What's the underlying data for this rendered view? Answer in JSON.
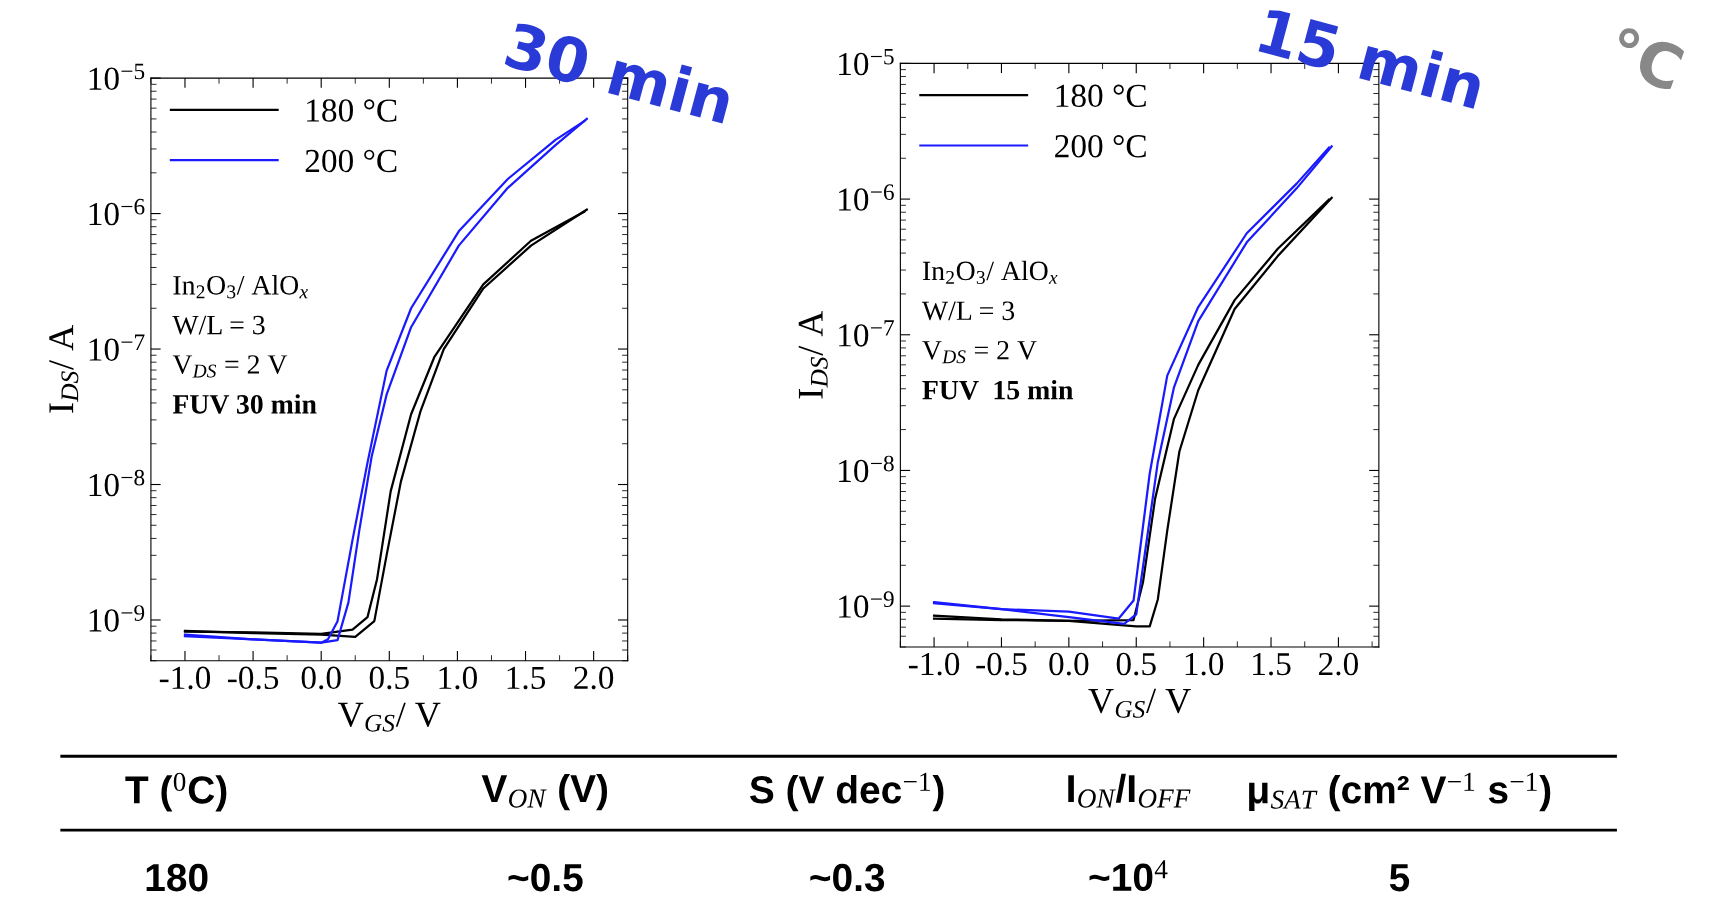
{
  "chart_data": [
    {
      "type": "line",
      "title": "30 min",
      "xlabel": "V$_{GS}$/ V",
      "ylabel": "I$_{DS}$/ A",
      "log": "y",
      "legend": "top left",
      "grid": false,
      "xlim": [
        -1.25,
        2.25
      ],
      "xticks": [
        {
          "value": -1.0,
          "label": "-1.0"
        },
        {
          "value": -0.5,
          "label": "-0.5"
        },
        {
          "value": 0.0,
          "label": "0.0"
        },
        {
          "value": 0.5,
          "label": "0.5"
        },
        {
          "value": 1.0,
          "label": "1.0"
        },
        {
          "value": 1.5,
          "label": "1.5"
        },
        {
          "value": 2.0,
          "label": "2.0"
        }
      ],
      "ylim": [
        5e-10,
        1e-05
      ],
      "yticks": [
        {
          "value": 1e-09,
          "label": "10$^{−9}$"
        },
        {
          "value": 1e-08,
          "label": "10$^{−8}$"
        },
        {
          "value": 1e-07,
          "label": "10$^{−7}$"
        },
        {
          "value": 1e-06,
          "label": "10$^{−6}$"
        },
        {
          "value": 1e-05,
          "label": "10$^{−5}$"
        }
      ],
      "annotations": [
        "In$_{2}$O$_{3}$/ AlO$_{x}$",
        "W/L = 3",
        "V$_{DS}$ = 2 V",
        "FUV 30 min"
      ],
      "series": [
        {
          "name": "180 °C",
          "color": "#000000",
          "x": [
            -1.0,
            -0.5,
            0.0,
            0.25,
            0.39,
            0.48,
            0.585,
            0.73,
            0.9,
            1.19,
            1.54,
            1.95
          ],
          "values": [
            8.3e-10,
            8e-10,
            7.8e-10,
            7.5e-10,
            9.8e-10,
            3e-09,
            1.05e-08,
            3.5e-08,
            1e-07,
            2.8e-07,
            5.8e-07,
            1.07e-06
          ]
        },
        {
          "color": "#000000",
          "x": [
            -1.0,
            -0.5,
            0.0,
            0.23,
            0.34,
            0.41,
            0.51,
            0.66,
            0.83,
            1.19,
            1.54,
            1.93
          ],
          "values": [
            8.2e-10,
            8.1e-10,
            7.9e-10,
            8.5e-10,
            1.05e-09,
            2e-09,
            8.9e-09,
            3.3e-08,
            8.7e-08,
            3e-07,
            6.3e-07,
            1.03e-06
          ]
        },
        {
          "name": "200 °C",
          "color": "#1a1aff",
          "x": [
            -1.0,
            -0.5,
            0.0,
            0.12,
            0.2,
            0.28,
            0.37,
            0.48,
            0.66,
            1.01,
            1.37,
            1.72,
            1.95
          ],
          "values": [
            7.8e-10,
            7.2e-10,
            6.8e-10,
            7.1e-10,
            1.35e-09,
            4.6e-09,
            1.6e-08,
            4.6e-08,
            1.45e-07,
            5.8e-07,
            1.55e-06,
            3.2e-06,
            5e-06
          ]
        },
        {
          "color": "#1a1aff",
          "x": [
            -1.0,
            -0.5,
            0.0,
            0.05,
            0.12,
            0.23,
            0.34,
            0.48,
            0.66,
            1.01,
            1.37,
            1.72,
            1.93
          ],
          "values": [
            7.6e-10,
            7.2e-10,
            6.8e-10,
            7.2e-10,
            9.8e-10,
            3.9e-09,
            1.45e-08,
            6.9e-08,
            2e-07,
            7.4e-07,
            1.8e-06,
            3.5e-06,
            4.8e-06
          ]
        }
      ]
    },
    {
      "type": "line",
      "title": "15 min",
      "xlabel": "V$_{GS}$/ V",
      "ylabel": "I$_{DS}$/ A",
      "log": "y",
      "legend": "top left",
      "grid": false,
      "xlim": [
        -1.25,
        2.3
      ],
      "xticks": [
        {
          "value": -1.0,
          "label": "-1.0"
        },
        {
          "value": -0.5,
          "label": "-0.5"
        },
        {
          "value": 0.0,
          "label": "0.0"
        },
        {
          "value": 0.5,
          "label": "0.5"
        },
        {
          "value": 1.0,
          "label": "1.0"
        },
        {
          "value": 1.5,
          "label": "1.5"
        },
        {
          "value": 2.0,
          "label": "2.0"
        }
      ],
      "ylim": [
        5e-10,
        1e-05
      ],
      "yticks": [
        {
          "value": 1e-09,
          "label": "10$^{−9}$"
        },
        {
          "value": 1e-08,
          "label": "10$^{−8}$"
        },
        {
          "value": 1e-07,
          "label": "10$^{−7}$"
        },
        {
          "value": 1e-06,
          "label": "10$^{−6}$"
        },
        {
          "value": 1e-05,
          "label": "10$^{−5}$"
        }
      ],
      "annotations": [
        "In$_{2}$O$_{3}$/ AlO$_{x}$",
        "W/L = 3",
        "V$_{DS}$ = 2 V",
        "FUV  15 min"
      ],
      "series": [
        {
          "name": "180 °C",
          "color": "#000000",
          "x": [
            -1.0,
            -0.5,
            0.0,
            0.5,
            0.6,
            0.66,
            0.73,
            0.82,
            0.96,
            1.23,
            1.55,
            1.95
          ],
          "values": [
            8.5e-10,
            8e-10,
            7.8e-10,
            7.1e-10,
            7.1e-10,
            1.12e-09,
            3.6e-09,
            1.38e-08,
            3.9e-08,
            1.55e-07,
            3.8e-07,
            1.02e-06
          ]
        },
        {
          "color": "#000000",
          "x": [
            -1.0,
            -0.5,
            0.0,
            0.48,
            0.55,
            0.64,
            0.78,
            0.96,
            1.23,
            1.55,
            1.93
          ],
          "values": [
            8.1e-10,
            7.9e-10,
            7.8e-10,
            7.9e-10,
            1.5e-09,
            6.2e-09,
            2.4e-08,
            6e-08,
            1.8e-07,
            4.3e-07,
            9.9e-07
          ]
        },
        {
          "name": "200 °C",
          "color": "#1a1aff",
          "x": [
            -1.0,
            -0.5,
            0.0,
            0.41,
            0.5,
            0.57,
            0.66,
            0.78,
            0.96,
            1.32,
            1.69,
            1.95
          ],
          "values": [
            1.07e-09,
            9.5e-10,
            8.3e-10,
            7.4e-10,
            8.7e-10,
            2.7e-09,
            1.15e-08,
            4.1e-08,
            1.26e-07,
            4.8e-07,
            1.2e-06,
            2.45e-06
          ]
        },
        {
          "color": "#1a1aff",
          "x": [
            -1.0,
            -0.5,
            0.0,
            0.37,
            0.48,
            0.6,
            0.73,
            0.96,
            1.32,
            1.69,
            1.93
          ],
          "values": [
            1.05e-09,
            9.5e-10,
            9.1e-10,
            8.1e-10,
            1.1e-09,
            9.5e-09,
            5e-08,
            1.6e-07,
            5.6e-07,
            1.3e-06,
            2.4e-06
          ]
        }
      ]
    },
    {
      "type": "other",
      "annotations": [
        "T ($^{0}$C)",
        "V$_{ON}$ (V)",
        "S (V dec$^{−1}$)",
        "I$_{ON}$/I$_{OFF}$",
        "μ$_{SAT}$ (cm² V$^{−1}$ s$^{−1}$)",
        "180",
        "~0.5",
        "~0.3",
        "~10$^{4}$",
        "5",
        "°C"
      ]
    }
  ]
}
